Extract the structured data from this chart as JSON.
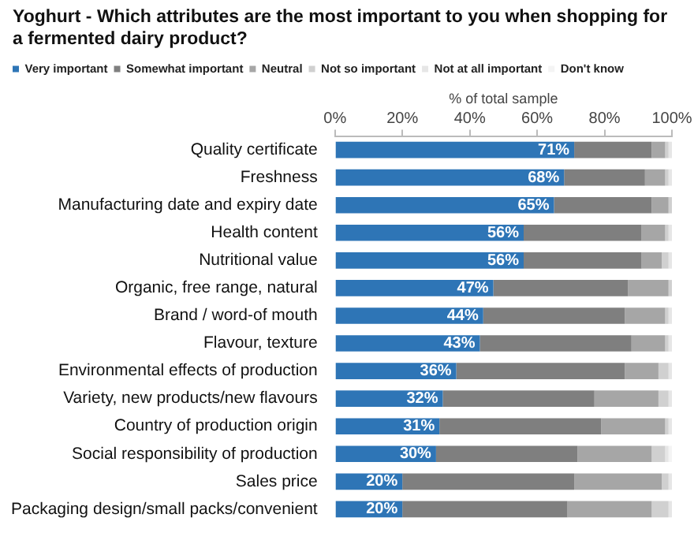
{
  "chart_data": {
    "type": "bar",
    "title": "Yoghurt - Which attributes are the most important to you when shopping for a fermented dairy product?",
    "xlabel": "% of total sample",
    "orientation": "horizontal",
    "stacked": true,
    "legend": "top",
    "grid": false,
    "categories": [
      "Quality certificate",
      "Freshness",
      "Manufacturing date and expiry date",
      "Health content",
      "Nutritional value",
      "Organic, free range, natural",
      "Brand / word-of mouth",
      "Flavour, texture",
      "Environmental effects of production",
      "Variety, new products/new flavours",
      "Country of production origin",
      "Social responsibility of production",
      "Sales price",
      "Packaging design/small packs/convenient"
    ],
    "xlim": [
      0,
      100
    ],
    "xticks": [
      {
        "value": 0,
        "label": "0%"
      },
      {
        "value": 20,
        "label": "20%"
      },
      {
        "value": 40,
        "label": "40%"
      },
      {
        "value": 60,
        "label": "60%"
      },
      {
        "value": 80,
        "label": "80%"
      },
      {
        "value": 100,
        "label": "100%"
      }
    ],
    "series": [
      {
        "name": "Very important",
        "color": "#2e75b6",
        "values": [
          71,
          68,
          65,
          56,
          56,
          47,
          44,
          43,
          36,
          32,
          31,
          30,
          20,
          20
        ],
        "value_labels": [
          "71%",
          "68%",
          "65%",
          "56%",
          "56%",
          "47%",
          "44%",
          "43%",
          "36%",
          "32%",
          "31%",
          "30%",
          "20%",
          "20%"
        ]
      },
      {
        "name": "Somewhat important",
        "color": "#7f7f7f",
        "values": [
          23,
          24,
          29,
          35,
          35,
          40,
          42,
          45,
          50,
          45,
          48,
          42,
          51,
          49
        ]
      },
      {
        "name": "Neutral",
        "color": "#a6a6a6",
        "values": [
          4,
          6,
          5,
          7,
          6,
          12,
          12,
          10,
          10,
          19,
          19,
          22,
          26,
          25
        ]
      },
      {
        "name": "Not so important",
        "color": "#d0d0d0",
        "values": [
          1,
          1,
          1,
          1,
          2,
          1,
          1,
          1,
          3,
          3,
          1,
          4,
          2,
          5
        ]
      },
      {
        "name": "Not at all important",
        "color": "#e6e6e6",
        "values": [
          1,
          1,
          0,
          1,
          1,
          0,
          1,
          1,
          1,
          1,
          1,
          1,
          1,
          1
        ]
      },
      {
        "name": "Don't know",
        "color": "#f4f4f4",
        "values": [
          0,
          0,
          0,
          0,
          0,
          0,
          0,
          0,
          0,
          0,
          0,
          1,
          0,
          0
        ]
      }
    ]
  }
}
